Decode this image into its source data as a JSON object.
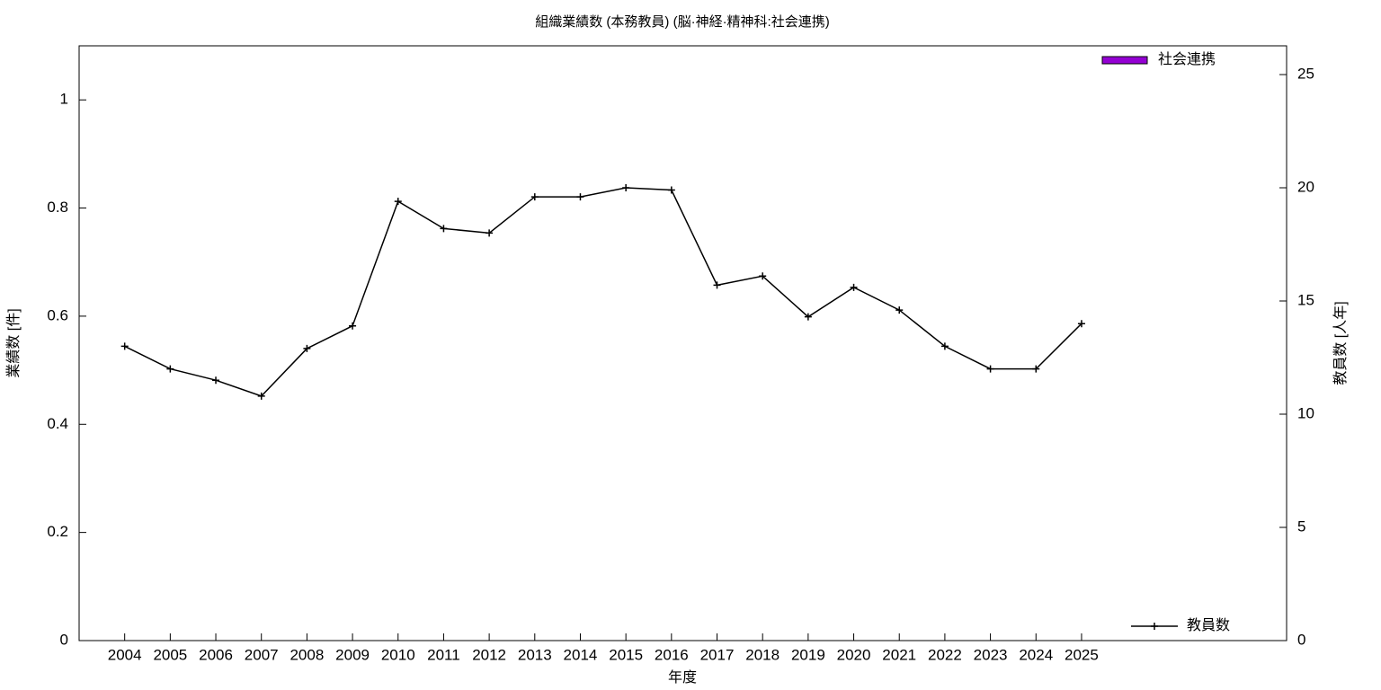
{
  "chart_data": {
    "type": "bar_line",
    "title": "組織業績数 (本務教員) (脳·神経·精神科:社会連携)",
    "xlabel": "年度",
    "ylabel": "業績数 [件]",
    "y2label": "教員数 [人年]",
    "x": [
      2004,
      2005,
      2006,
      2007,
      2008,
      2009,
      2010,
      2011,
      2012,
      2013,
      2014,
      2015,
      2016,
      2017,
      2018,
      2019,
      2020,
      2021,
      2022,
      2023,
      2024,
      2025
    ],
    "xlim": [
      2003,
      2029.5
    ],
    "xticks": [
      2004,
      2005,
      2006,
      2007,
      2008,
      2009,
      2010,
      2011,
      2012,
      2013,
      2014,
      2015,
      2016,
      2017,
      2018,
      2019,
      2020,
      2021,
      2022,
      2023,
      2024,
      2025
    ],
    "ylim": [
      0,
      1.1
    ],
    "yticks": [
      0,
      0.2,
      0.4,
      0.6,
      0.8,
      1
    ],
    "y2lim": [
      0,
      26.27
    ],
    "y2ticks": [
      0,
      5,
      10,
      15,
      20,
      25
    ],
    "series": [
      {
        "name": "社会連携",
        "type": "bar",
        "color": "#9400d3",
        "values": [
          0,
          0,
          0,
          0,
          0,
          0,
          0,
          0,
          0,
          0,
          0,
          0,
          0,
          0,
          0,
          0,
          0,
          0,
          0,
          0,
          0,
          0
        ]
      },
      {
        "name": "教員数",
        "type": "line",
        "axis": "y2",
        "color": "#000000",
        "values": [
          13,
          12,
          11.5,
          10.8,
          12.9,
          13.9,
          19.4,
          18.2,
          18,
          19.6,
          19.6,
          20,
          19.9,
          15.7,
          16.1,
          14.3,
          15.6,
          14.6,
          13,
          12,
          12,
          14
        ]
      }
    ]
  }
}
